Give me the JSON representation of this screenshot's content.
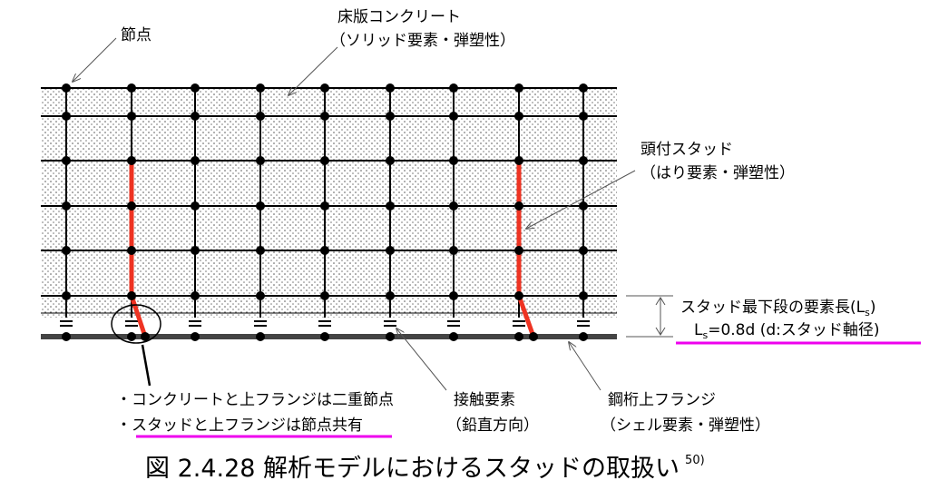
{
  "labels": {
    "node": "節点",
    "slab_title": "床版コンクリート",
    "slab_sub": "（ソリッド要素・弾塑性）",
    "stud_title": "頭付スタッド",
    "stud_sub": "（はり要素・弾塑性）",
    "len_main": "スタッド最下段の要素長(L",
    "len_sub": "s",
    "len_end": ")",
    "len_eq_l": "L",
    "len_eq_sub": "s",
    "len_eq_rest": "=0.8d (d:スタッド軸径)",
    "note1": "・コンクリートと上フランジは二重節点",
    "note2": "・スタッドと上フランジは節点共有",
    "contact_title": "接触要素",
    "contact_sub": "（鉛直方向）",
    "flange_title": "鋼桁上フランジ",
    "flange_sub": "（シェル要素・弾塑性）"
  },
  "caption": {
    "text": "図 2.4.28 解析モデルにおけるスタッドの取扱い",
    "ref": "50)"
  }
}
